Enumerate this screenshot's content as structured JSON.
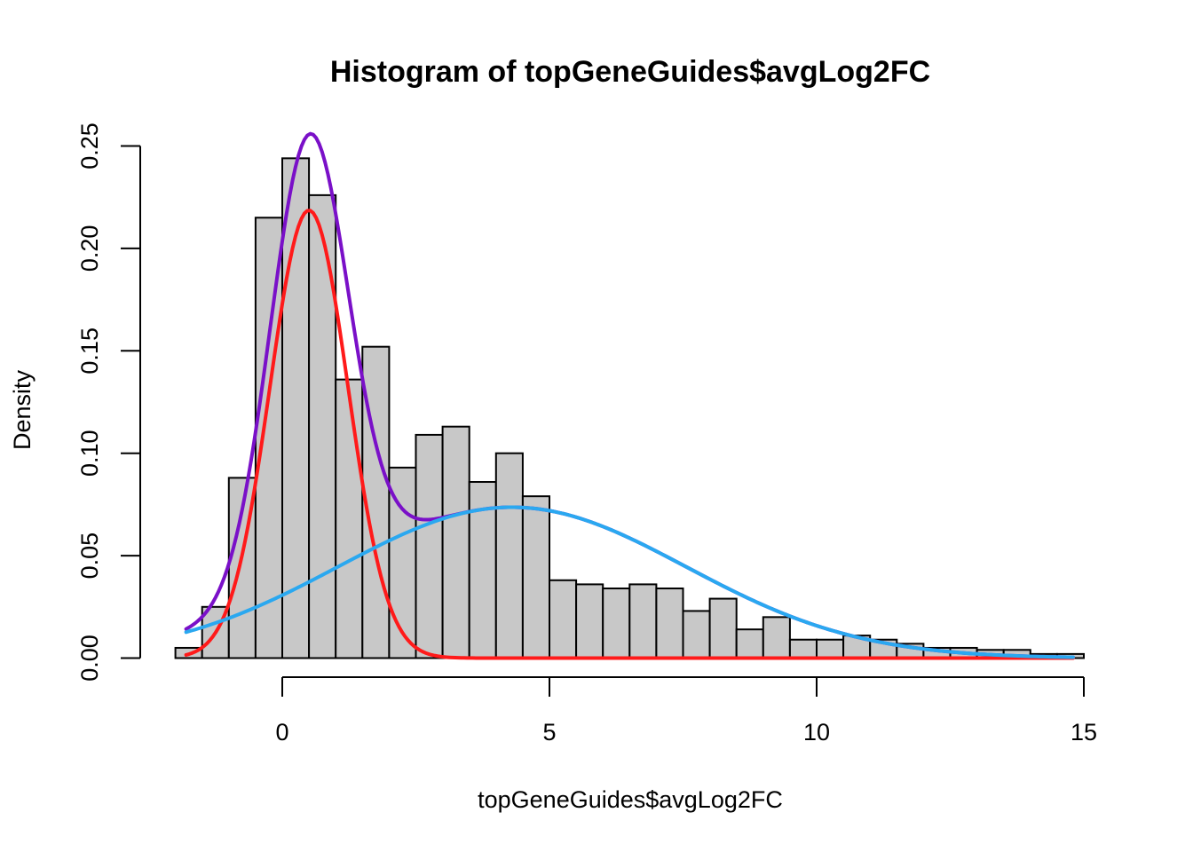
{
  "chart_data": {
    "type": "bar",
    "title": "Histogram of topGeneGuides$avgLog2FC",
    "xlabel": "topGeneGuides$avgLog2FC",
    "ylabel": "Density",
    "xlim": [
      -2,
      15
    ],
    "ylim": [
      0,
      0.25
    ],
    "x_ticks": [
      {
        "value": 0,
        "label": "0"
      },
      {
        "value": 5,
        "label": "5"
      },
      {
        "value": 10,
        "label": "10"
      },
      {
        "value": 15,
        "label": "15"
      }
    ],
    "y_ticks": [
      {
        "value": 0.0,
        "label": "0.00"
      },
      {
        "value": 0.05,
        "label": "0.05"
      },
      {
        "value": 0.1,
        "label": "0.10"
      },
      {
        "value": 0.15,
        "label": "0.15"
      },
      {
        "value": 0.2,
        "label": "0.20"
      },
      {
        "value": 0.25,
        "label": "0.25"
      }
    ],
    "bin_width": 0.5,
    "bin_starts": [
      -2,
      -1.5,
      -1,
      -0.5,
      0,
      0.5,
      1,
      1.5,
      2,
      2.5,
      3,
      3.5,
      4,
      4.5,
      5,
      5.5,
      6,
      6.5,
      7,
      7.5,
      8,
      8.5,
      9,
      9.5,
      10,
      10.5,
      11,
      11.5,
      12,
      12.5,
      13,
      13.5,
      14,
      14.5
    ],
    "densities": [
      0.005,
      0.025,
      0.088,
      0.215,
      0.244,
      0.226,
      0.136,
      0.152,
      0.093,
      0.109,
      0.113,
      0.086,
      0.1,
      0.079,
      0.038,
      0.036,
      0.034,
      0.036,
      0.034,
      0.023,
      0.029,
      0.014,
      0.02,
      0.009,
      0.009,
      0.011,
      0.009,
      0.007,
      0.005,
      0.005,
      0.004,
      0.004,
      0.002,
      0.002
    ],
    "curves": [
      {
        "color": "#7a10c8",
        "components": [
          {
            "weight": 0.4,
            "mean": 0.5,
            "sd": 0.73
          },
          {
            "weight": 0.6,
            "mean": 4.3,
            "sd": 3.25
          }
        ],
        "x_range": [
          -1.8,
          14.8
        ]
      },
      {
        "color": "#ff1a1a",
        "components": [
          {
            "weight": 0.4,
            "mean": 0.5,
            "sd": 0.73
          }
        ],
        "x_range": [
          -1.8,
          14.8
        ]
      },
      {
        "color": "#2aa8f0",
        "components": [
          {
            "weight": 0.6,
            "mean": 4.3,
            "sd": 3.25
          }
        ],
        "x_range": [
          -1.8,
          14.8
        ]
      }
    ]
  }
}
